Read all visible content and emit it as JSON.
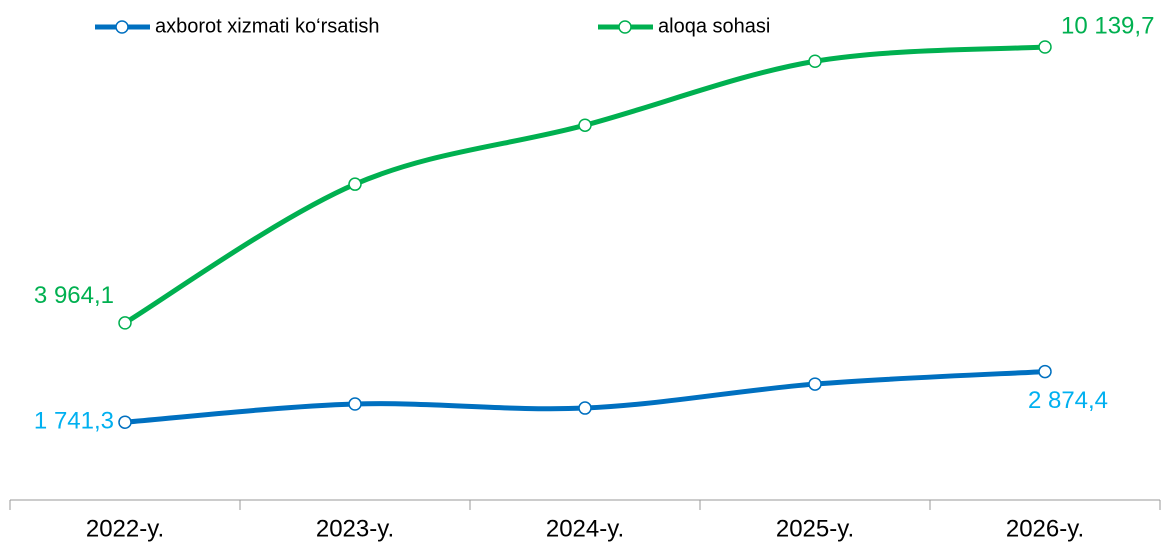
{
  "chart_data": {
    "type": "line",
    "categories": [
      "2022-y.",
      "2023-y.",
      "2024-y.",
      "2025-y.",
      "2026-y."
    ],
    "series": [
      {
        "name": "axborot xizmati ko‘rsatish",
        "color": "#0070c0",
        "label_color": "#00b0f0",
        "values": [
          1741.3,
          2148,
          2058,
          2595,
          2874.4
        ],
        "value_labels": [
          "1 741,3",
          null,
          null,
          null,
          "2 874,4"
        ]
      },
      {
        "name": "aloqa sohasi",
        "color": "#00b050",
        "label_color": "#00b050",
        "values": [
          3964.1,
          7069,
          8389,
          9821,
          10139.7
        ],
        "value_labels": [
          "3 964,1",
          null,
          null,
          null,
          "10 139,7"
        ]
      }
    ],
    "legend": "top"
  }
}
